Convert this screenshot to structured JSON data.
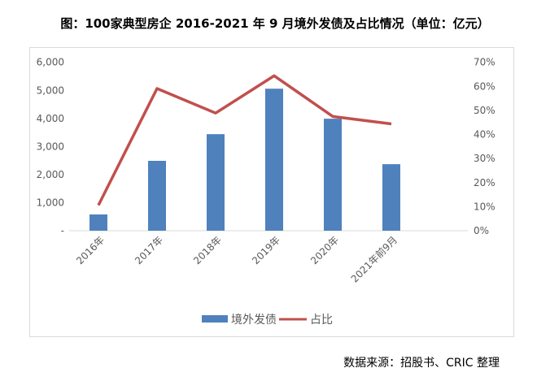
{
  "title": "图：100家典型房企 2016-2021 年 9 月境外发债及占比情况（单位：亿元）",
  "source": "数据来源：招股书、CRIC 整理",
  "chart_data": {
    "type": "bar",
    "categories": [
      "2016年",
      "2017年",
      "2018年",
      "2019年",
      "2020年",
      "2021年前9月"
    ],
    "series": [
      {
        "name": "境外发债",
        "type": "bar",
        "axis": "left",
        "color": "#4f81bd",
        "values": [
          580,
          2490,
          3440,
          5060,
          3990,
          2370
        ]
      },
      {
        "name": "占比",
        "type": "line",
        "axis": "right",
        "color": "#c0504d",
        "values": [
          10.6,
          59.1,
          48.9,
          64.4,
          47.5,
          44.4
        ]
      }
    ],
    "y_left": {
      "range": [
        0,
        6000
      ],
      "ticks": [
        "-",
        "1,000",
        "2,000",
        "3,000",
        "4,000",
        "5,000",
        "6,000"
      ]
    },
    "y_right": {
      "range": [
        0,
        70
      ],
      "unit": "%",
      "ticks": [
        "0%",
        "10%",
        "20%",
        "30%",
        "40%",
        "50%",
        "60%",
        "70%"
      ]
    },
    "grid": false,
    "legend": "bottom"
  }
}
